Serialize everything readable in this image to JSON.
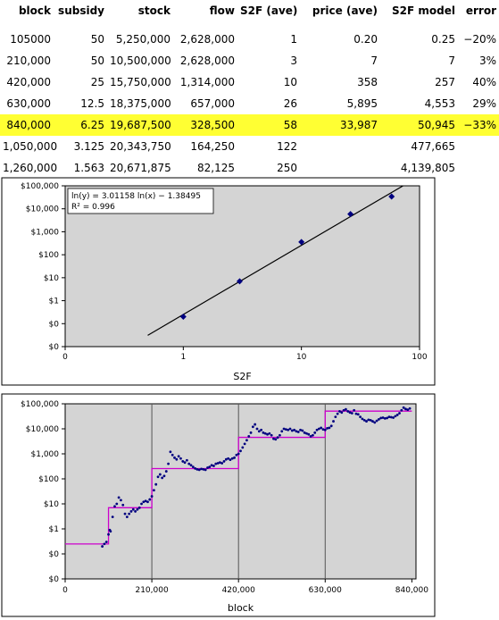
{
  "table": {
    "headers": [
      "block",
      "subsidy",
      "stock",
      "flow",
      "S2F (ave)",
      "price (ave)",
      "S2F model",
      "error"
    ],
    "rows": [
      [
        "105000",
        "50",
        "5,250,000",
        "2,628,000",
        "1",
        "0.20",
        "0.25",
        "−20%"
      ],
      [
        "210,000",
        "50",
        "10,500,000",
        "2,628,000",
        "3",
        "7",
        "7",
        "3%"
      ],
      [
        "420,000",
        "25",
        "15,750,000",
        "1,314,000",
        "10",
        "358",
        "257",
        "40%"
      ],
      [
        "630,000",
        "12.5",
        "18,375,000",
        "657,000",
        "26",
        "5,895",
        "4,553",
        "29%"
      ],
      [
        "840,000",
        "6.25",
        "19,687,500",
        "328,500",
        "58",
        "33,987",
        "50,945",
        "−33%"
      ],
      [
        "1,050,000",
        "3.125",
        "20,343,750",
        "164,250",
        "122",
        "",
        "477,665",
        ""
      ],
      [
        "1,260,000",
        "1.563",
        "20,671,875",
        "82,125",
        "250",
        "",
        "4,139,805",
        ""
      ]
    ],
    "highlight_row": 4,
    "highlight_color": "#ffff33"
  },
  "chart_data": [
    {
      "type": "scatter",
      "title": "",
      "xlabel": "S2F",
      "ylabel": "",
      "x_scale": "log",
      "y_scale": "log",
      "xlim": [
        0.1,
        100
      ],
      "ylim": [
        0.01,
        100000
      ],
      "x_ticks": [
        0.1,
        1,
        10,
        100
      ],
      "x_tick_labels": [
        "0",
        "1",
        "10",
        "100"
      ],
      "y_ticks": [
        0.01,
        0.1,
        1,
        10,
        100,
        1000,
        10000,
        100000
      ],
      "y_tick_labels": [
        "$0",
        "$0",
        "$1",
        "$10",
        "$100",
        "$1,000",
        "$10,000",
        "$100,000"
      ],
      "points": [
        {
          "x": 1,
          "y": 0.2
        },
        {
          "x": 3,
          "y": 7
        },
        {
          "x": 10,
          "y": 358
        },
        {
          "x": 26,
          "y": 5895
        },
        {
          "x": 58,
          "y": 33987
        }
      ],
      "trendline": {
        "slope": 3.01158,
        "intercept": -1.38495
      },
      "annotation": [
        "ln(y) = 3.01158 ln(x) − 1.38495",
        "R² = 0.996"
      ],
      "colors": {
        "points": "#000080",
        "line": "#000000",
        "plot_bg": "#d4d4d4"
      }
    },
    {
      "type": "scatter",
      "title": "",
      "xlabel": "block",
      "ylabel": "",
      "y_scale": "log",
      "xlim": [
        0,
        850000
      ],
      "ylim": [
        0.01,
        100000
      ],
      "x_ticks": [
        0,
        210000,
        420000,
        630000,
        840000
      ],
      "x_tick_labels": [
        "0",
        "210,000",
        "420,000",
        "630,000",
        "840,000"
      ],
      "y_ticks": [
        0.01,
        0.1,
        1,
        10,
        100,
        1000,
        10000,
        100000
      ],
      "y_tick_labels": [
        "$0",
        "$0",
        "$1",
        "$10",
        "$100",
        "$1,000",
        "$10,000",
        "$100,000"
      ],
      "vlines": [
        210000,
        420000,
        630000
      ],
      "model_steps": [
        {
          "x0": 0,
          "x1": 105000,
          "y": 0.25
        },
        {
          "x0": 105000,
          "x1": 210000,
          "y": 7
        },
        {
          "x0": 210000,
          "x1": 420000,
          "y": 257
        },
        {
          "x0": 420000,
          "x1": 630000,
          "y": 4553
        },
        {
          "x0": 630000,
          "x1": 840000,
          "y": 50945
        }
      ],
      "points": [
        {
          "x": 90000,
          "y": 0.2
        },
        {
          "x": 95000,
          "y": 0.25
        },
        {
          "x": 100000,
          "y": 0.3
        },
        {
          "x": 105000,
          "y": 0.6
        },
        {
          "x": 108000,
          "y": 0.9
        },
        {
          "x": 110000,
          "y": 0.8
        },
        {
          "x": 115000,
          "y": 3
        },
        {
          "x": 120000,
          "y": 8
        },
        {
          "x": 125000,
          "y": 10
        },
        {
          "x": 130000,
          "y": 18
        },
        {
          "x": 135000,
          "y": 14
        },
        {
          "x": 140000,
          "y": 9
        },
        {
          "x": 145000,
          "y": 4
        },
        {
          "x": 150000,
          "y": 3
        },
        {
          "x": 155000,
          "y": 4
        },
        {
          "x": 160000,
          "y": 5
        },
        {
          "x": 165000,
          "y": 6
        },
        {
          "x": 170000,
          "y": 5
        },
        {
          "x": 175000,
          "y": 6
        },
        {
          "x": 180000,
          "y": 7
        },
        {
          "x": 185000,
          "y": 10
        },
        {
          "x": 190000,
          "y": 12
        },
        {
          "x": 195000,
          "y": 13
        },
        {
          "x": 200000,
          "y": 12
        },
        {
          "x": 205000,
          "y": 15
        },
        {
          "x": 210000,
          "y": 20
        },
        {
          "x": 215000,
          "y": 35
        },
        {
          "x": 220000,
          "y": 60
        },
        {
          "x": 225000,
          "y": 120
        },
        {
          "x": 230000,
          "y": 150
        },
        {
          "x": 235000,
          "y": 110
        },
        {
          "x": 240000,
          "y": 130
        },
        {
          "x": 245000,
          "y": 200
        },
        {
          "x": 250000,
          "y": 400
        },
        {
          "x": 255000,
          "y": 1200
        },
        {
          "x": 260000,
          "y": 900
        },
        {
          "x": 265000,
          "y": 700
        },
        {
          "x": 270000,
          "y": 600
        },
        {
          "x": 275000,
          "y": 800
        },
        {
          "x": 280000,
          "y": 650
        },
        {
          "x": 285000,
          "y": 500
        },
        {
          "x": 290000,
          "y": 450
        },
        {
          "x": 295000,
          "y": 550
        },
        {
          "x": 300000,
          "y": 400
        },
        {
          "x": 305000,
          "y": 350
        },
        {
          "x": 310000,
          "y": 300
        },
        {
          "x": 315000,
          "y": 260
        },
        {
          "x": 320000,
          "y": 240
        },
        {
          "x": 325000,
          "y": 230
        },
        {
          "x": 330000,
          "y": 250
        },
        {
          "x": 335000,
          "y": 240
        },
        {
          "x": 340000,
          "y": 230
        },
        {
          "x": 345000,
          "y": 280
        },
        {
          "x": 350000,
          "y": 300
        },
        {
          "x": 355000,
          "y": 350
        },
        {
          "x": 360000,
          "y": 330
        },
        {
          "x": 365000,
          "y": 400
        },
        {
          "x": 370000,
          "y": 420
        },
        {
          "x": 375000,
          "y": 450
        },
        {
          "x": 380000,
          "y": 420
        },
        {
          "x": 385000,
          "y": 500
        },
        {
          "x": 390000,
          "y": 600
        },
        {
          "x": 395000,
          "y": 650
        },
        {
          "x": 400000,
          "y": 580
        },
        {
          "x": 405000,
          "y": 650
        },
        {
          "x": 410000,
          "y": 700
        },
        {
          "x": 415000,
          "y": 900
        },
        {
          "x": 420000,
          "y": 1000
        },
        {
          "x": 425000,
          "y": 1300
        },
        {
          "x": 430000,
          "y": 1800
        },
        {
          "x": 435000,
          "y": 2500
        },
        {
          "x": 440000,
          "y": 3500
        },
        {
          "x": 445000,
          "y": 5000
        },
        {
          "x": 450000,
          "y": 7000
        },
        {
          "x": 455000,
          "y": 12000
        },
        {
          "x": 460000,
          "y": 15000
        },
        {
          "x": 465000,
          "y": 10000
        },
        {
          "x": 470000,
          "y": 8000
        },
        {
          "x": 475000,
          "y": 9000
        },
        {
          "x": 480000,
          "y": 7000
        },
        {
          "x": 485000,
          "y": 6500
        },
        {
          "x": 490000,
          "y": 6000
        },
        {
          "x": 495000,
          "y": 6500
        },
        {
          "x": 500000,
          "y": 5500
        },
        {
          "x": 505000,
          "y": 4000
        },
        {
          "x": 510000,
          "y": 3800
        },
        {
          "x": 515000,
          "y": 4500
        },
        {
          "x": 520000,
          "y": 5500
        },
        {
          "x": 525000,
          "y": 8000
        },
        {
          "x": 530000,
          "y": 10000
        },
        {
          "x": 535000,
          "y": 9500
        },
        {
          "x": 540000,
          "y": 9000
        },
        {
          "x": 545000,
          "y": 10000
        },
        {
          "x": 550000,
          "y": 8500
        },
        {
          "x": 555000,
          "y": 9000
        },
        {
          "x": 560000,
          "y": 8000
        },
        {
          "x": 565000,
          "y": 7500
        },
        {
          "x": 570000,
          "y": 9000
        },
        {
          "x": 575000,
          "y": 8500
        },
        {
          "x": 580000,
          "y": 7000
        },
        {
          "x": 585000,
          "y": 6500
        },
        {
          "x": 590000,
          "y": 6000
        },
        {
          "x": 595000,
          "y": 5000
        },
        {
          "x": 600000,
          "y": 5500
        },
        {
          "x": 605000,
          "y": 7000
        },
        {
          "x": 610000,
          "y": 9000
        },
        {
          "x": 615000,
          "y": 10000
        },
        {
          "x": 620000,
          "y": 11000
        },
        {
          "x": 625000,
          "y": 9500
        },
        {
          "x": 630000,
          "y": 9000
        },
        {
          "x": 635000,
          "y": 10500
        },
        {
          "x": 640000,
          "y": 11000
        },
        {
          "x": 645000,
          "y": 13000
        },
        {
          "x": 650000,
          "y": 20000
        },
        {
          "x": 655000,
          "y": 30000
        },
        {
          "x": 660000,
          "y": 40000
        },
        {
          "x": 665000,
          "y": 50000
        },
        {
          "x": 670000,
          "y": 45000
        },
        {
          "x": 675000,
          "y": 55000
        },
        {
          "x": 680000,
          "y": 60000
        },
        {
          "x": 685000,
          "y": 50000
        },
        {
          "x": 690000,
          "y": 45000
        },
        {
          "x": 695000,
          "y": 42000
        },
        {
          "x": 700000,
          "y": 55000
        },
        {
          "x": 705000,
          "y": 40000
        },
        {
          "x": 710000,
          "y": 38000
        },
        {
          "x": 715000,
          "y": 30000
        },
        {
          "x": 720000,
          "y": 25000
        },
        {
          "x": 725000,
          "y": 22000
        },
        {
          "x": 730000,
          "y": 20000
        },
        {
          "x": 735000,
          "y": 23000
        },
        {
          "x": 740000,
          "y": 22000
        },
        {
          "x": 745000,
          "y": 20000
        },
        {
          "x": 750000,
          "y": 18000
        },
        {
          "x": 755000,
          "y": 21000
        },
        {
          "x": 760000,
          "y": 24000
        },
        {
          "x": 765000,
          "y": 27000
        },
        {
          "x": 770000,
          "y": 28000
        },
        {
          "x": 775000,
          "y": 26000
        },
        {
          "x": 780000,
          "y": 27000
        },
        {
          "x": 785000,
          "y": 30000
        },
        {
          "x": 790000,
          "y": 29000
        },
        {
          "x": 795000,
          "y": 28000
        },
        {
          "x": 800000,
          "y": 32000
        },
        {
          "x": 805000,
          "y": 36000
        },
        {
          "x": 810000,
          "y": 42000
        },
        {
          "x": 815000,
          "y": 55000
        },
        {
          "x": 820000,
          "y": 70000
        },
        {
          "x": 825000,
          "y": 62000
        },
        {
          "x": 830000,
          "y": 58000
        },
        {
          "x": 835000,
          "y": 65000
        }
      ],
      "colors": {
        "points": "#000080",
        "model": "#cc00cc",
        "vlines": "#555555",
        "plot_bg": "#d4d4d4"
      }
    }
  ]
}
